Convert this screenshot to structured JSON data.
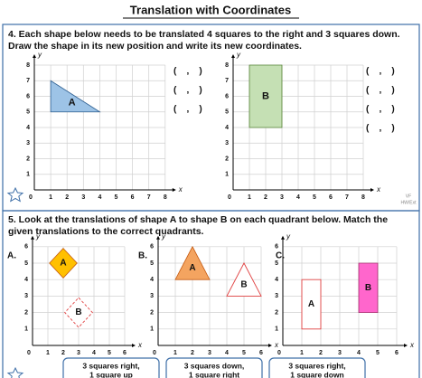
{
  "title": "Translation with Coordinates",
  "q4": {
    "lines": [
      "4. Each shape below needs to be translated 4 squares to the right and 3 squares down.",
      "Draw the shape in its new position and write its new coordinates."
    ],
    "graphs": [
      {
        "shape": "A",
        "axis_x": "x",
        "axis_y": "y",
        "x_ticks": [
          0,
          1,
          2,
          3,
          4,
          5,
          6,
          7,
          8
        ],
        "y_ticks": [
          1,
          2,
          3,
          4,
          5,
          6,
          7,
          8
        ],
        "answers": [
          "(    ,    )",
          "(    ,    )",
          "(    ,    )"
        ]
      },
      {
        "shape": "B",
        "axis_x": "x",
        "axis_y": "y",
        "x_ticks": [
          0,
          1,
          2,
          3,
          4,
          5,
          6,
          7,
          8
        ],
        "y_ticks": [
          1,
          2,
          3,
          4,
          5,
          6,
          7,
          8
        ],
        "answers": [
          "(    ,    )",
          "(    ,    )",
          "(    ,    )",
          "(    ,    )"
        ]
      }
    ],
    "note": [
      "VF",
      "HW/Ext"
    ]
  },
  "q5": {
    "lines": [
      "5. Look at the translations of shape A to shape B on each quadrant below. Match the",
      "given translations to the correct quadrants."
    ],
    "graphs": [
      {
        "label": "A.",
        "shapes": [
          "A",
          "B"
        ],
        "axis_x": "x",
        "axis_y": "y",
        "x_ticks": [
          0,
          1,
          2,
          3,
          4,
          5,
          6
        ],
        "y_ticks": [
          1,
          2,
          3,
          4,
          5,
          6
        ]
      },
      {
        "label": "B.",
        "shapes": [
          "A",
          "B"
        ],
        "axis_x": "x",
        "axis_y": "y",
        "x_ticks": [
          0,
          1,
          2,
          3,
          4,
          5,
          6
        ],
        "y_ticks": [
          1,
          2,
          3,
          4,
          5,
          6
        ]
      },
      {
        "label": "C.",
        "shapes": [
          "A",
          "B"
        ],
        "axis_x": "x",
        "axis_y": "y",
        "x_ticks": [
          0,
          1,
          2,
          3,
          4,
          5,
          6
        ],
        "y_ticks": [
          1,
          2,
          3,
          4,
          5,
          6
        ]
      }
    ],
    "options": [
      [
        "3 squares right,",
        "1 square up"
      ],
      [
        "3 squares down,",
        "1 square right"
      ],
      [
        "3 squares right,",
        "1 square down"
      ]
    ]
  }
}
